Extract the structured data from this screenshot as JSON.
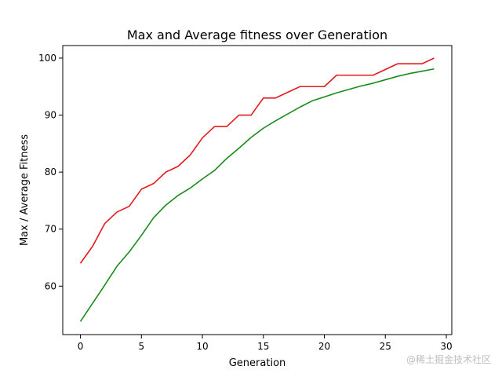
{
  "watermark": "@稀土掘金技术社区",
  "chart_data": {
    "type": "line",
    "title": "Max and Average fitness over Generation",
    "xlabel": "Generation",
    "ylabel": "Max / Average Fitness",
    "xlim": [
      -1.45,
      30.45
    ],
    "ylim": [
      51.5,
      102.2
    ],
    "xticks": [
      0,
      5,
      10,
      15,
      20,
      25,
      30
    ],
    "yticks": [
      60,
      70,
      80,
      90,
      100
    ],
    "grid": false,
    "legend": "none",
    "x": [
      0,
      1,
      2,
      3,
      4,
      5,
      6,
      7,
      8,
      9,
      10,
      11,
      12,
      13,
      14,
      15,
      16,
      17,
      18,
      19,
      20,
      21,
      22,
      23,
      24,
      25,
      26,
      27,
      28,
      29
    ],
    "series": [
      {
        "color": "#e41a1c",
        "values": [
          64,
          67,
          71,
          73,
          74,
          77,
          78,
          80,
          81,
          83,
          86,
          88,
          88,
          90,
          90,
          93,
          93,
          94,
          95,
          95,
          95,
          97,
          97,
          97,
          97,
          98,
          99,
          99,
          99,
          100
        ]
      },
      {
        "color": "#1a8a1a",
        "values": [
          53.8,
          57,
          60.2,
          63.5,
          66,
          68.9,
          72,
          74.2,
          75.9,
          77.2,
          78.8,
          80.3,
          82.4,
          84.2,
          86.1,
          87.7,
          89,
          90.2,
          91.4,
          92.5,
          93.2,
          93.9,
          94.5,
          95.1,
          95.6,
          96.2,
          96.8,
          97.3,
          97.7,
          98.1
        ]
      }
    ]
  }
}
